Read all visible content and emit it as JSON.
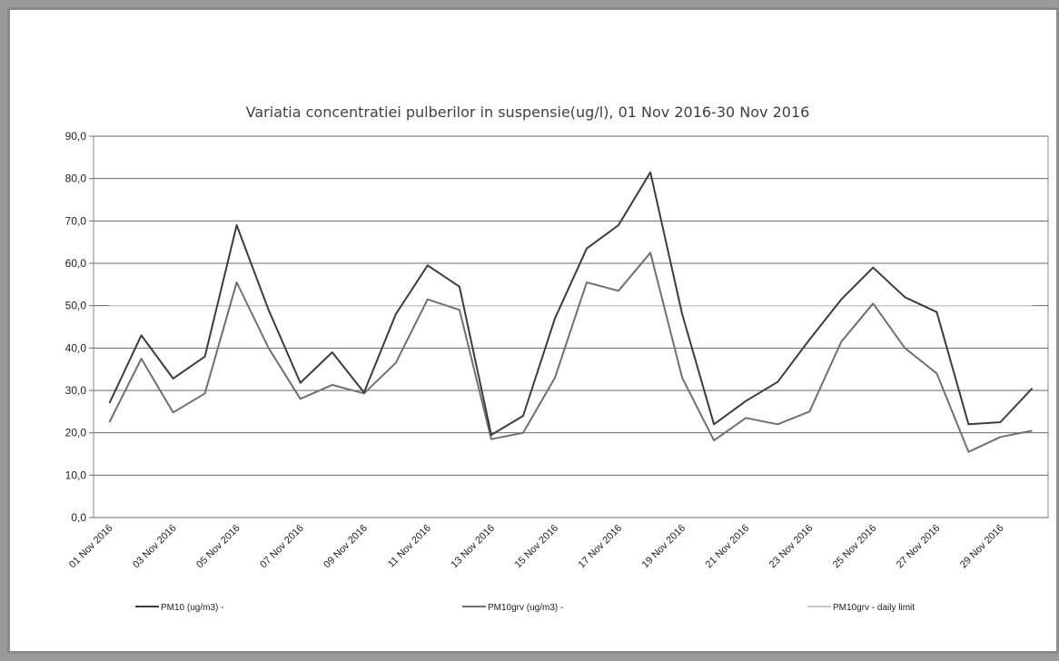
{
  "chart_data": {
    "type": "line",
    "title": "Variatia concentratiei pulberilor in suspensie(ug/l), 01 Nov 2016-30 Nov 2016",
    "xlabel": "",
    "ylabel": "",
    "ylim": [
      0,
      90
    ],
    "y_ticks": [
      "0,0",
      "10,0",
      "20,0",
      "30,0",
      "40,0",
      "50,0",
      "60,0",
      "70,0",
      "80,0",
      "90,0"
    ],
    "x_tick_labels": [
      "01 Nov 2016",
      "03 Nov 2016",
      "05 Nov 2016",
      "07 Nov 2016",
      "09 Nov 2016",
      "11 Nov 2016",
      "13 Nov 2016",
      "15 Nov 2016",
      "17 Nov 2016",
      "19 Nov 2016",
      "21 Nov 2016",
      "23 Nov 2016",
      "25 Nov 2016",
      "27 Nov 2016",
      "29 Nov 2016"
    ],
    "x": [
      "01 Nov 2016",
      "02 Nov 2016",
      "03 Nov 2016",
      "04 Nov 2016",
      "05 Nov 2016",
      "06 Nov 2016",
      "07 Nov 2016",
      "08 Nov 2016",
      "09 Nov 2016",
      "10 Nov 2016",
      "11 Nov 2016",
      "12 Nov 2016",
      "13 Nov 2016",
      "14 Nov 2016",
      "15 Nov 2016",
      "16 Nov 2016",
      "17 Nov 2016",
      "18 Nov 2016",
      "19 Nov 2016",
      "20 Nov 2016",
      "21 Nov 2016",
      "22 Nov 2016",
      "23 Nov 2016",
      "24 Nov 2016",
      "25 Nov 2016",
      "26 Nov 2016",
      "27 Nov 2016",
      "28 Nov 2016",
      "29 Nov 2016",
      "30 Nov 2016"
    ],
    "grid": true,
    "legend_position": "bottom",
    "series": [
      {
        "name": "PM10 (ug/m3) -",
        "color": "#3c3c3c",
        "values": [
          27.0,
          43.0,
          32.8,
          38.0,
          69.0,
          49.0,
          31.8,
          39.0,
          29.5,
          48.0,
          59.5,
          54.5,
          19.5,
          24.0,
          47.0,
          63.5,
          69.0,
          81.5,
          48.0,
          22.0,
          27.5,
          32.0,
          42.0,
          51.5,
          59.0,
          52.0,
          48.5,
          22.0,
          22.5,
          30.5
        ]
      },
      {
        "name": "PM10grv (ug/m3) -",
        "color": "#707070",
        "values": [
          22.5,
          37.5,
          24.8,
          29.3,
          55.5,
          40.0,
          28.0,
          31.3,
          29.3,
          36.5,
          51.5,
          49.0,
          18.5,
          20.0,
          33.0,
          55.5,
          53.5,
          62.5,
          33.0,
          18.2,
          23.5,
          22.0,
          25.0,
          41.5,
          50.5,
          40.0,
          34.0,
          15.5,
          19.0,
          20.5
        ]
      },
      {
        "name": "PM10grv - daily limit",
        "color": "#c8c8c8",
        "values": [
          50,
          50,
          50,
          50,
          50,
          50,
          50,
          50,
          50,
          50,
          50,
          50,
          50,
          50,
          50,
          50,
          50,
          50,
          50,
          50,
          50,
          50,
          50,
          50,
          50,
          50,
          50,
          50,
          50,
          50
        ]
      }
    ]
  }
}
